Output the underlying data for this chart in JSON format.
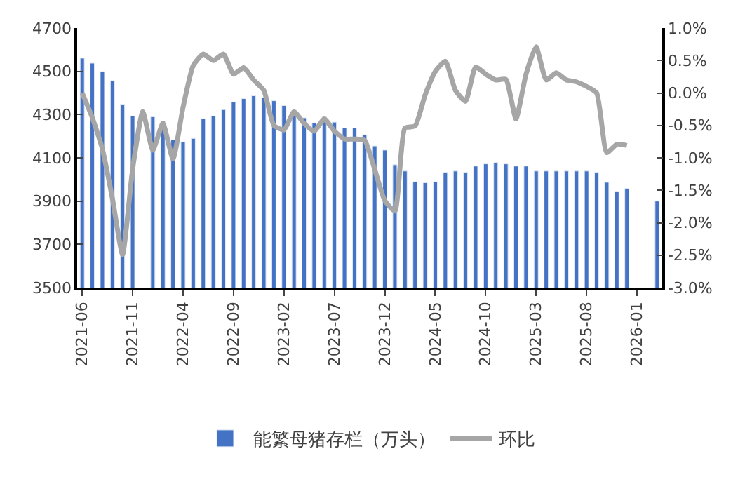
{
  "chart_data": {
    "type": "bar",
    "categories": [
      "2021-06",
      null,
      null,
      null,
      null,
      "2021-11",
      null,
      null,
      null,
      null,
      "2022-04",
      null,
      null,
      null,
      null,
      "2022-09",
      null,
      null,
      null,
      null,
      "2023-02",
      null,
      null,
      null,
      null,
      "2023-07",
      null,
      null,
      null,
      null,
      "2023-12",
      null,
      null,
      null,
      null,
      "2024-05",
      null,
      null,
      null,
      null,
      "2024-10",
      null,
      null,
      null,
      null,
      "2025-03",
      null,
      null,
      null,
      null,
      "2025-08",
      null,
      null,
      null,
      null,
      "2026-01",
      null,
      null
    ],
    "series": [
      {
        "name": "能繁母猪存栏（万头）",
        "color": "#4472c4",
        "values": [
          4561,
          4538,
          4499,
          4457,
          4348,
          4294,
          null,
          4290,
          4270,
          4184,
          4174,
          4190,
          4281,
          4294,
          4323,
          4358,
          4374,
          4387,
          4378,
          4364,
          4342,
          4310,
          4285,
          4262,
          4290,
          4265,
          4238,
          4238,
          4207,
          4155,
          4136,
          4068,
          4039,
          3990,
          3985,
          3990,
          4033,
          4039,
          4033,
          4062,
          4072,
          4078,
          4072,
          4062,
          4062,
          4039,
          4039,
          4039,
          4039,
          4039,
          4039,
          4033,
          3987,
          3946,
          3958,
          null,
          null,
          3900
        ]
      },
      {
        "name": "环比",
        "type": "line",
        "axis": "y2",
        "color": "#a6a6a6",
        "values": [
          0.0,
          -0.38,
          -0.86,
          -1.63,
          -2.49,
          -1.17,
          -0.29,
          -0.88,
          -0.47,
          -1.02,
          -0.22,
          0.42,
          0.6,
          0.5,
          0.6,
          0.29,
          0.39,
          0.2,
          0.04,
          -0.5,
          -0.57,
          -0.29,
          -0.47,
          -0.59,
          -0.4,
          -0.59,
          -0.71,
          -0.71,
          -0.73,
          -1.18,
          -1.66,
          -1.82,
          -0.54,
          -0.51,
          -0.03,
          0.33,
          0.49,
          0.04,
          -0.13,
          0.4,
          0.29,
          0.2,
          0.21,
          -0.4,
          0.29,
          0.71,
          0.2,
          0.31,
          0.2,
          0.17,
          0.1,
          0.0,
          -0.92,
          -0.79,
          -0.81,
          null,
          null,
          null
        ]
      }
    ],
    "ylim": [
      3500,
      4700
    ],
    "yticks": [
      3500,
      3700,
      3900,
      4100,
      4300,
      4500,
      4700
    ],
    "y2lim": [
      -3.0,
      1.0
    ],
    "y2ticks": [
      {
        "value": -3.0,
        "label": "-3.0%"
      },
      {
        "value": -2.5,
        "label": "-2.5%"
      },
      {
        "value": -2.0,
        "label": "-2.0%"
      },
      {
        "value": -1.5,
        "label": "-1.5%"
      },
      {
        "value": -1.0,
        "label": "-1.0%"
      },
      {
        "value": -0.5,
        "label": "-0.5%"
      },
      {
        "value": 0.0,
        "label": "0.0%"
      },
      {
        "value": 0.5,
        "label": "0.5%"
      },
      {
        "value": 1.0,
        "label": "1.0%"
      }
    ],
    "legend": "bottom",
    "marker": "none",
    "line_style": "solid"
  }
}
